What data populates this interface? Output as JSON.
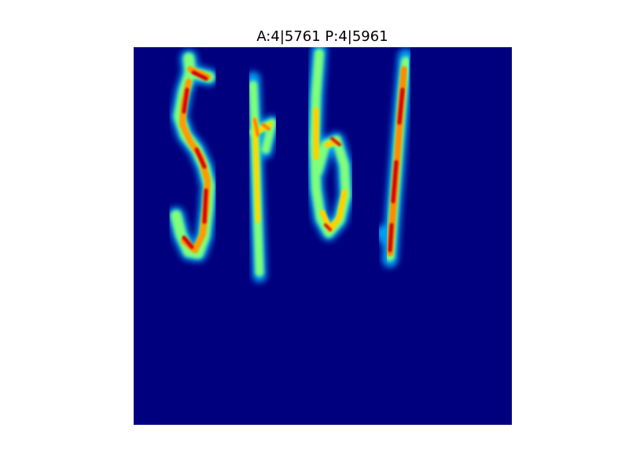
{
  "figure": {
    "title": "A:4|5761 P:4|5961"
  },
  "image": {
    "subject": "heatmap-of-handwritten-digit-string",
    "colormap": "jet",
    "background_color": "#00007f"
  }
}
